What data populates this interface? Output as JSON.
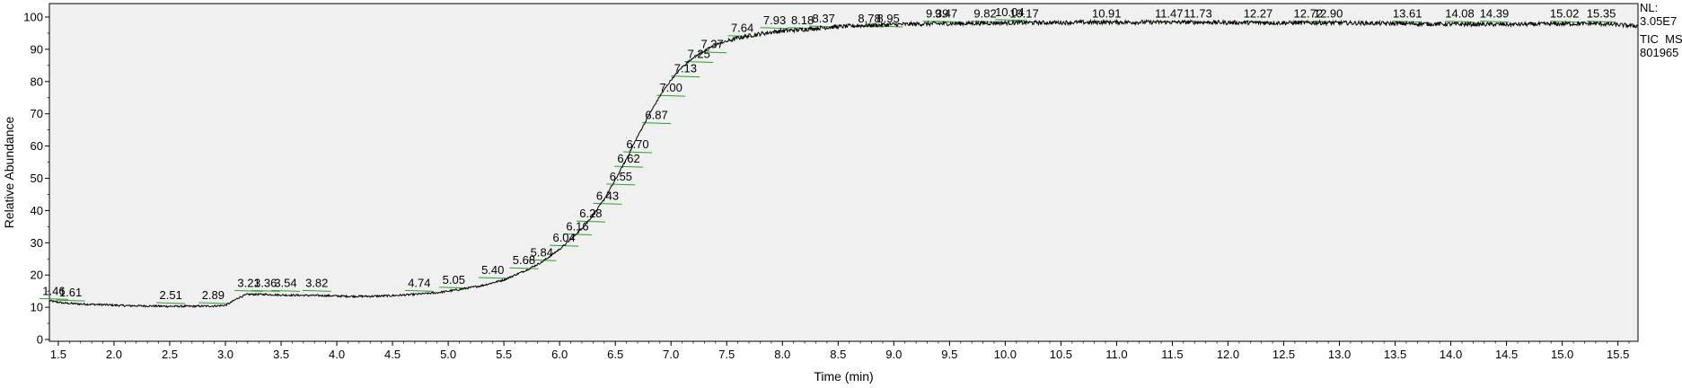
{
  "chart_data": {
    "type": "line",
    "xlabel": "Time (min)",
    "ylabel": "Relative Abundance",
    "xlim": [
      1.42,
      15.68
    ],
    "ylim": [
      0,
      100
    ],
    "x_ticks": [
      "1.5",
      "2.0",
      "2.5",
      "3.0",
      "3.5",
      "4.0",
      "4.5",
      "5.0",
      "5.5",
      "6.0",
      "6.5",
      "7.0",
      "7.5",
      "8.0",
      "8.5",
      "9.0",
      "9.5",
      "10.0",
      "10.5",
      "11.0",
      "11.5",
      "12.0",
      "12.5",
      "13.0",
      "13.5",
      "14.0",
      "14.5",
      "15.0",
      "15.5"
    ],
    "y_ticks": [
      "0",
      "10",
      "20",
      "30",
      "40",
      "50",
      "60",
      "70",
      "80",
      "90",
      "100"
    ],
    "side_labels": [
      "NL:",
      "3.05E7",
      "TIC  MS",
      "801965"
    ],
    "line_color": "#000000",
    "baseline_color": "#2ca02c",
    "plot_background": "#f0f0f0",
    "series": [
      {
        "x": [
          1.42,
          1.55,
          1.7,
          1.9,
          2.1,
          2.3,
          2.5,
          2.7,
          2.9,
          3.0,
          3.05,
          3.12,
          3.2,
          3.35,
          3.5,
          3.7,
          3.9,
          4.1,
          4.3,
          4.5,
          4.7,
          4.9,
          5.1,
          5.3,
          5.5,
          5.7,
          5.84,
          6.0,
          6.1,
          6.2,
          6.3,
          6.4,
          6.5,
          6.6,
          6.7,
          6.8,
          6.9,
          7.0,
          7.1,
          7.2,
          7.3,
          7.4,
          7.5,
          7.6,
          7.7,
          7.8,
          7.9,
          8.0,
          8.2,
          8.4,
          8.6,
          8.8,
          9.0,
          9.3,
          9.6,
          10.0,
          10.5,
          11.0,
          11.5,
          12.0,
          12.5,
          13.0,
          13.5,
          14.0,
          14.5,
          15.0,
          15.3,
          15.5,
          15.68
        ],
        "y": [
          12,
          11.3,
          11,
          10.8,
          10.5,
          10.4,
          10.3,
          10.3,
          10.4,
          10.6,
          11.5,
          13,
          14,
          14,
          13.8,
          13.7,
          13.6,
          13.4,
          13.4,
          13.6,
          14,
          14.5,
          15.5,
          16.7,
          18.5,
          21.5,
          24,
          28,
          31,
          34.5,
          38.5,
          43.5,
          49.5,
          56,
          63,
          69.5,
          75.5,
          80.5,
          84.5,
          87.5,
          89.5,
          91.5,
          92.5,
          93.5,
          94.2,
          94.8,
          95.3,
          95.7,
          96.2,
          96.8,
          97.2,
          97.5,
          97.7,
          97.9,
          98,
          98.2,
          98.3,
          98.4,
          98.4,
          98.3,
          98.2,
          98.2,
          98,
          97.8,
          97.7,
          97.9,
          98,
          97.6,
          97.2
        ]
      }
    ],
    "peak_labels": [
      {
        "label": "1.46",
        "x": 1.46,
        "y": 13
      },
      {
        "label": "1.61",
        "x": 1.61,
        "y": 12.5
      },
      {
        "label": "2.51",
        "x": 2.51,
        "y": 11.7
      },
      {
        "label": "2.89",
        "x": 2.89,
        "y": 11.7
      },
      {
        "label": "3.21",
        "x": 3.21,
        "y": 15.5
      },
      {
        "label": "3.36",
        "x": 3.36,
        "y": 15.5
      },
      {
        "label": "3.54",
        "x": 3.54,
        "y": 15.5
      },
      {
        "label": "3.82",
        "x": 3.82,
        "y": 15.5
      },
      {
        "label": "4.74",
        "x": 4.74,
        "y": 15.5
      },
      {
        "label": "5.05",
        "x": 5.05,
        "y": 16.5
      },
      {
        "label": "5.40",
        "x": 5.4,
        "y": 19.5
      },
      {
        "label": "5.68",
        "x": 5.68,
        "y": 22.5
      },
      {
        "label": "5.84",
        "x": 5.84,
        "y": 25
      },
      {
        "label": "6.04",
        "x": 6.04,
        "y": 29.5
      },
      {
        "label": "6.16",
        "x": 6.16,
        "y": 33
      },
      {
        "label": "6.28",
        "x": 6.28,
        "y": 37
      },
      {
        "label": "6.43",
        "x": 6.43,
        "y": 42.5
      },
      {
        "label": "6.55",
        "x": 6.55,
        "y": 48.5
      },
      {
        "label": "6.62",
        "x": 6.62,
        "y": 54
      },
      {
        "label": "6.70",
        "x": 6.7,
        "y": 58.5
      },
      {
        "label": "6.87",
        "x": 6.87,
        "y": 67.5
      },
      {
        "label": "7.00",
        "x": 7.0,
        "y": 76
      },
      {
        "label": "7.13",
        "x": 7.13,
        "y": 82
      },
      {
        "label": "7.25",
        "x": 7.25,
        "y": 86.5
      },
      {
        "label": "7.37",
        "x": 7.37,
        "y": 89.5
      },
      {
        "label": "7.64",
        "x": 7.64,
        "y": 94.5
      },
      {
        "label": "7.93",
        "x": 7.93,
        "y": 97
      },
      {
        "label": "8.18",
        "x": 8.18,
        "y": 97
      },
      {
        "label": "8.37",
        "x": 8.37,
        "y": 97.5
      },
      {
        "label": "8.78",
        "x": 8.78,
        "y": 97.5
      },
      {
        "label": "8.95",
        "x": 8.95,
        "y": 97.5
      },
      {
        "label": "9.39",
        "x": 9.39,
        "y": 99
      },
      {
        "label": "9.47",
        "x": 9.47,
        "y": 99
      },
      {
        "label": "9.82",
        "x": 9.82,
        "y": 99
      },
      {
        "label": "10.04",
        "x": 10.04,
        "y": 99.5
      },
      {
        "label": "10.17",
        "x": 10.17,
        "y": 99
      },
      {
        "label": "10.91",
        "x": 10.91,
        "y": 99
      },
      {
        "label": "11.47",
        "x": 11.47,
        "y": 99
      },
      {
        "label": "11.73",
        "x": 11.73,
        "y": 99
      },
      {
        "label": "12.27",
        "x": 12.27,
        "y": 99
      },
      {
        "label": "12.72",
        "x": 12.72,
        "y": 99
      },
      {
        "label": "12.90",
        "x": 12.9,
        "y": 99
      },
      {
        "label": "13.61",
        "x": 13.61,
        "y": 99
      },
      {
        "label": "14.08",
        "x": 14.08,
        "y": 99
      },
      {
        "label": "14.39",
        "x": 14.39,
        "y": 99
      },
      {
        "label": "15.02",
        "x": 15.02,
        "y": 99
      },
      {
        "label": "15.35",
        "x": 15.35,
        "y": 99
      }
    ]
  }
}
